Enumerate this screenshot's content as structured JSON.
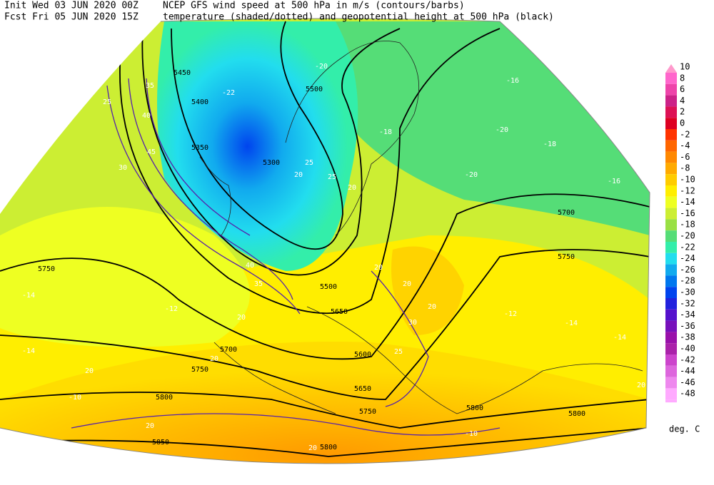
{
  "header": {
    "init": "Init  Wed 03 JUN 2020 00Z",
    "product": "NCEP GFS wind speed at 500 hPa in m/s (contours/barbs)",
    "forecast": "Fcst Fri 05 JUN 2020 15Z",
    "fields": "temperature (shaded/dotted) and geopotential height at 500 hPa (black)"
  },
  "legend": {
    "unit": "deg. C",
    "items": [
      {
        "label": "10",
        "color": "#ff99cc"
      },
      {
        "label": "8",
        "color": "#ff66cc"
      },
      {
        "label": "6",
        "color": "#ee44aa"
      },
      {
        "label": "4",
        "color": "#cc2288"
      },
      {
        "label": "2",
        "color": "#dd1155"
      },
      {
        "label": "0",
        "color": "#dd0022"
      },
      {
        "label": "-2",
        "color": "#ff3300"
      },
      {
        "label": "-4",
        "color": "#ff6600"
      },
      {
        "label": "-6",
        "color": "#ff8800"
      },
      {
        "label": "-8",
        "color": "#ffaa00"
      },
      {
        "label": "-10",
        "color": "#ffcc00"
      },
      {
        "label": "-12",
        "color": "#ffee00"
      },
      {
        "label": "-14",
        "color": "#eeff22"
      },
      {
        "label": "-16",
        "color": "#ccee33"
      },
      {
        "label": "-18",
        "color": "#99e044"
      },
      {
        "label": "-20",
        "color": "#55dd77"
      },
      {
        "label": "-22",
        "color": "#33eeaa"
      },
      {
        "label": "-24",
        "color": "#22ddee"
      },
      {
        "label": "-26",
        "color": "#11aaee"
      },
      {
        "label": "-28",
        "color": "#0077ee"
      },
      {
        "label": "-30",
        "color": "#0044ee"
      },
      {
        "label": "-32",
        "color": "#2222dd"
      },
      {
        "label": "-34",
        "color": "#5511cc"
      },
      {
        "label": "-36",
        "color": "#7711bb"
      },
      {
        "label": "-38",
        "color": "#9911aa"
      },
      {
        "label": "-40",
        "color": "#aa22aa"
      },
      {
        "label": "-42",
        "color": "#cc44cc"
      },
      {
        "label": "-44",
        "color": "#dd66dd"
      },
      {
        "label": "-46",
        "color": "#ee88ee"
      },
      {
        "label": "-48",
        "color": "#ffaaff"
      }
    ]
  },
  "height_labels": [
    "5450",
    "5400",
    "5350",
    "5300",
    "5500",
    "5500",
    "5750",
    "5700",
    "5750",
    "5650",
    "5600",
    "5700",
    "5750",
    "5650",
    "5750",
    "5800",
    "5800",
    "5800",
    "5850",
    "5800"
  ],
  "temperature_labels": [
    "-20",
    "-22",
    "-16",
    "-18",
    "-20",
    "-18",
    "-20",
    "-16",
    "-14",
    "-14",
    "-12",
    "-14",
    "-14",
    "-10",
    "-10",
    "-12"
  ],
  "wind_labels": [
    "35",
    "40",
    "45",
    "30",
    "25",
    "20",
    "25",
    "20",
    "25",
    "20",
    "20",
    "20",
    "20",
    "30",
    "25",
    "20",
    "20",
    "20",
    "20",
    "20",
    "20",
    "40",
    "35"
  ]
}
